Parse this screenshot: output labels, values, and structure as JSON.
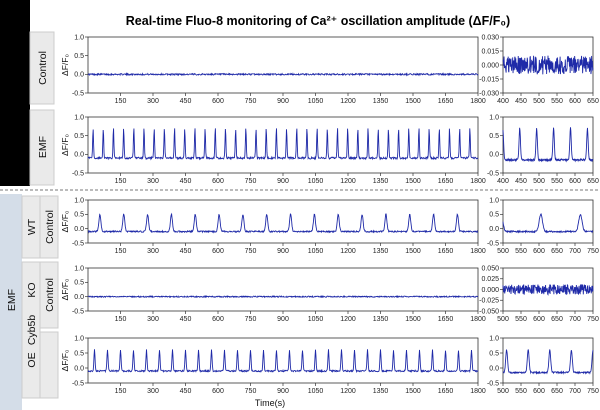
{
  "title": "Real-time Fluo-8 monitoring of Ca²⁺ oscillation amplitude (ΔF/F₀)",
  "xlabel": "Time(s)",
  "ylabel": "ΔF/F₀",
  "colors": {
    "trace": "#1f2aa8",
    "top_band": "#000000",
    "side_band": "#d4dde8",
    "row_label_bg": "#eaeaea"
  },
  "group_labels": {
    "emf": "EMF",
    "wt": "WT",
    "cyb5b": "Cyb5b"
  },
  "row_labels": {
    "control_top": "Control",
    "emf_top": "EMF",
    "wt_control": "Control",
    "ko": "KO",
    "control_ko": "Control",
    "oe": "OE"
  },
  "chart_data": [
    {
      "id": "top_control_full",
      "type": "line",
      "series": [
        {
          "pattern": "noise",
          "amplitude": 0.02
        }
      ],
      "xlim": [
        0,
        1800
      ],
      "ylim": [
        -0.5,
        1.0
      ],
      "xticks": [
        "150",
        "300",
        "450",
        "600",
        "750",
        "900",
        "1050",
        "1200",
        "1350",
        "1500",
        "1650",
        "1800"
      ],
      "yticks": [
        "1.0",
        "0.5",
        "0.0",
        "-0.5"
      ]
    },
    {
      "id": "top_control_zoom",
      "type": "line",
      "series": [
        {
          "pattern": "noise",
          "amplitude": 0.01
        }
      ],
      "xlim": [
        400,
        650
      ],
      "ylim": [
        -0.03,
        0.03
      ],
      "xticks": [
        "400",
        "450",
        "500",
        "550",
        "600",
        "650"
      ],
      "yticks": [
        "0.030",
        "0.015",
        "0.000",
        "-0.015",
        "-0.030"
      ]
    },
    {
      "id": "top_emf_full",
      "type": "line",
      "series": [
        {
          "pattern": "oscillation",
          "period_s": 47,
          "baseline": -0.1,
          "peak": 0.7
        }
      ],
      "xlim": [
        0,
        1800
      ],
      "ylim": [
        -0.5,
        1.0
      ],
      "xticks": [
        "150",
        "300",
        "450",
        "600",
        "750",
        "900",
        "1050",
        "1200",
        "1350",
        "1500",
        "1650",
        "1800"
      ],
      "yticks": [
        "1.0",
        "0.5",
        "0.0",
        "-0.5"
      ]
    },
    {
      "id": "top_emf_zoom",
      "type": "line",
      "series": [
        {
          "pattern": "oscillation",
          "period_s": 47,
          "baseline": -0.15,
          "peak": 0.7
        }
      ],
      "xlim": [
        400,
        650
      ],
      "ylim": [
        -0.5,
        1.0
      ],
      "xticks": [
        "400",
        "450",
        "500",
        "550",
        "600",
        "650"
      ],
      "yticks": [
        "1.0",
        "0.5",
        "0.0",
        "-0.5"
      ]
    },
    {
      "id": "wt_control_full",
      "type": "line",
      "series": [
        {
          "pattern": "oscillation",
          "period_s": 110,
          "baseline": -0.1,
          "peak": 0.5
        }
      ],
      "xlim": [
        0,
        1800
      ],
      "ylim": [
        -0.5,
        1.0
      ],
      "xticks": [
        "150",
        "300",
        "450",
        "600",
        "750",
        "900",
        "1050",
        "1200",
        "1350",
        "1500",
        "1650",
        "1800"
      ],
      "yticks": [
        "1.0",
        "0.5",
        "0.0",
        "-0.5"
      ]
    },
    {
      "id": "wt_control_zoom",
      "type": "line",
      "series": [
        {
          "pattern": "oscillation",
          "period_s": 110,
          "baseline": -0.1,
          "peak": 0.5
        }
      ],
      "xlim": [
        500,
        750
      ],
      "ylim": [
        -0.5,
        1.0
      ],
      "xticks": [
        "500",
        "550",
        "600",
        "650",
        "700",
        "750"
      ],
      "yticks": [
        "1.0",
        "0.5",
        "0.0",
        "-0.5"
      ]
    },
    {
      "id": "ko_control_full",
      "type": "line",
      "series": [
        {
          "pattern": "noise",
          "amplitude": 0.02
        }
      ],
      "xlim": [
        0,
        1800
      ],
      "ylim": [
        -0.5,
        1.0
      ],
      "xticks": [
        "150",
        "300",
        "450",
        "600",
        "750",
        "900",
        "1050",
        "1200",
        "1350",
        "1500",
        "1650",
        "1800"
      ],
      "yticks": [
        "1.0",
        "0.5",
        "0.0",
        "-0.5"
      ]
    },
    {
      "id": "ko_control_zoom",
      "type": "line",
      "series": [
        {
          "pattern": "noise",
          "amplitude": 0.012
        }
      ],
      "xlim": [
        500,
        750
      ],
      "ylim": [
        -0.05,
        0.05
      ],
      "xticks": [
        "500",
        "550",
        "600",
        "650",
        "700",
        "750"
      ],
      "yticks": [
        "0.050",
        "0.025",
        "0.000",
        "-0.025",
        "-0.050"
      ]
    },
    {
      "id": "oe_full",
      "type": "line",
      "series": [
        {
          "pattern": "oscillation",
          "period_s": 60,
          "baseline": -0.1,
          "peak": 0.6
        }
      ],
      "xlim": [
        0,
        1800
      ],
      "ylim": [
        -0.5,
        1.0
      ],
      "xticks": [
        "150",
        "300",
        "450",
        "600",
        "750",
        "900",
        "1050",
        "1200",
        "1350",
        "1500",
        "1650",
        "1800"
      ],
      "yticks": [
        "1.0",
        "0.5",
        "0.0",
        "-0.5"
      ]
    },
    {
      "id": "oe_zoom",
      "type": "line",
      "series": [
        {
          "pattern": "oscillation",
          "period_s": 60,
          "baseline": -0.15,
          "peak": 0.6
        }
      ],
      "xlim": [
        500,
        750
      ],
      "ylim": [
        -0.5,
        1.0
      ],
      "xticks": [
        "500",
        "550",
        "600",
        "650",
        "700",
        "750"
      ],
      "yticks": [
        "1.0",
        "0.5",
        "0.0",
        "-0.5"
      ]
    }
  ]
}
